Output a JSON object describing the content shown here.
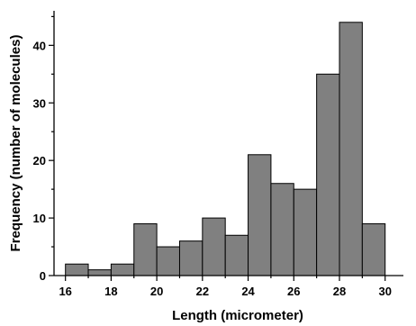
{
  "chart_data": {
    "type": "bar",
    "title": "",
    "xlabel": "Length (micrometer)",
    "ylabel": "Frequency (number of molecules)",
    "bin_width": 1,
    "bins": [
      16.5,
      17.5,
      18.5,
      19.5,
      20.5,
      21.5,
      22.5,
      23.5,
      24.5,
      25.5,
      26.5,
      27.5,
      28.5,
      29.5
    ],
    "values": [
      2,
      1,
      2,
      9,
      5,
      6,
      10,
      7,
      21,
      16,
      15,
      35,
      44,
      9
    ],
    "xlim": [
      15.5,
      30.8
    ],
    "ylim": [
      0,
      46
    ],
    "x_major_ticks": [
      "16",
      "18",
      "20",
      "22",
      "24",
      "26",
      "28",
      "30"
    ],
    "y_major_ticks": [
      "0",
      "10",
      "20",
      "30",
      "40"
    ],
    "grid": false,
    "bar_color": "#808080",
    "edge_color": "#000000"
  }
}
